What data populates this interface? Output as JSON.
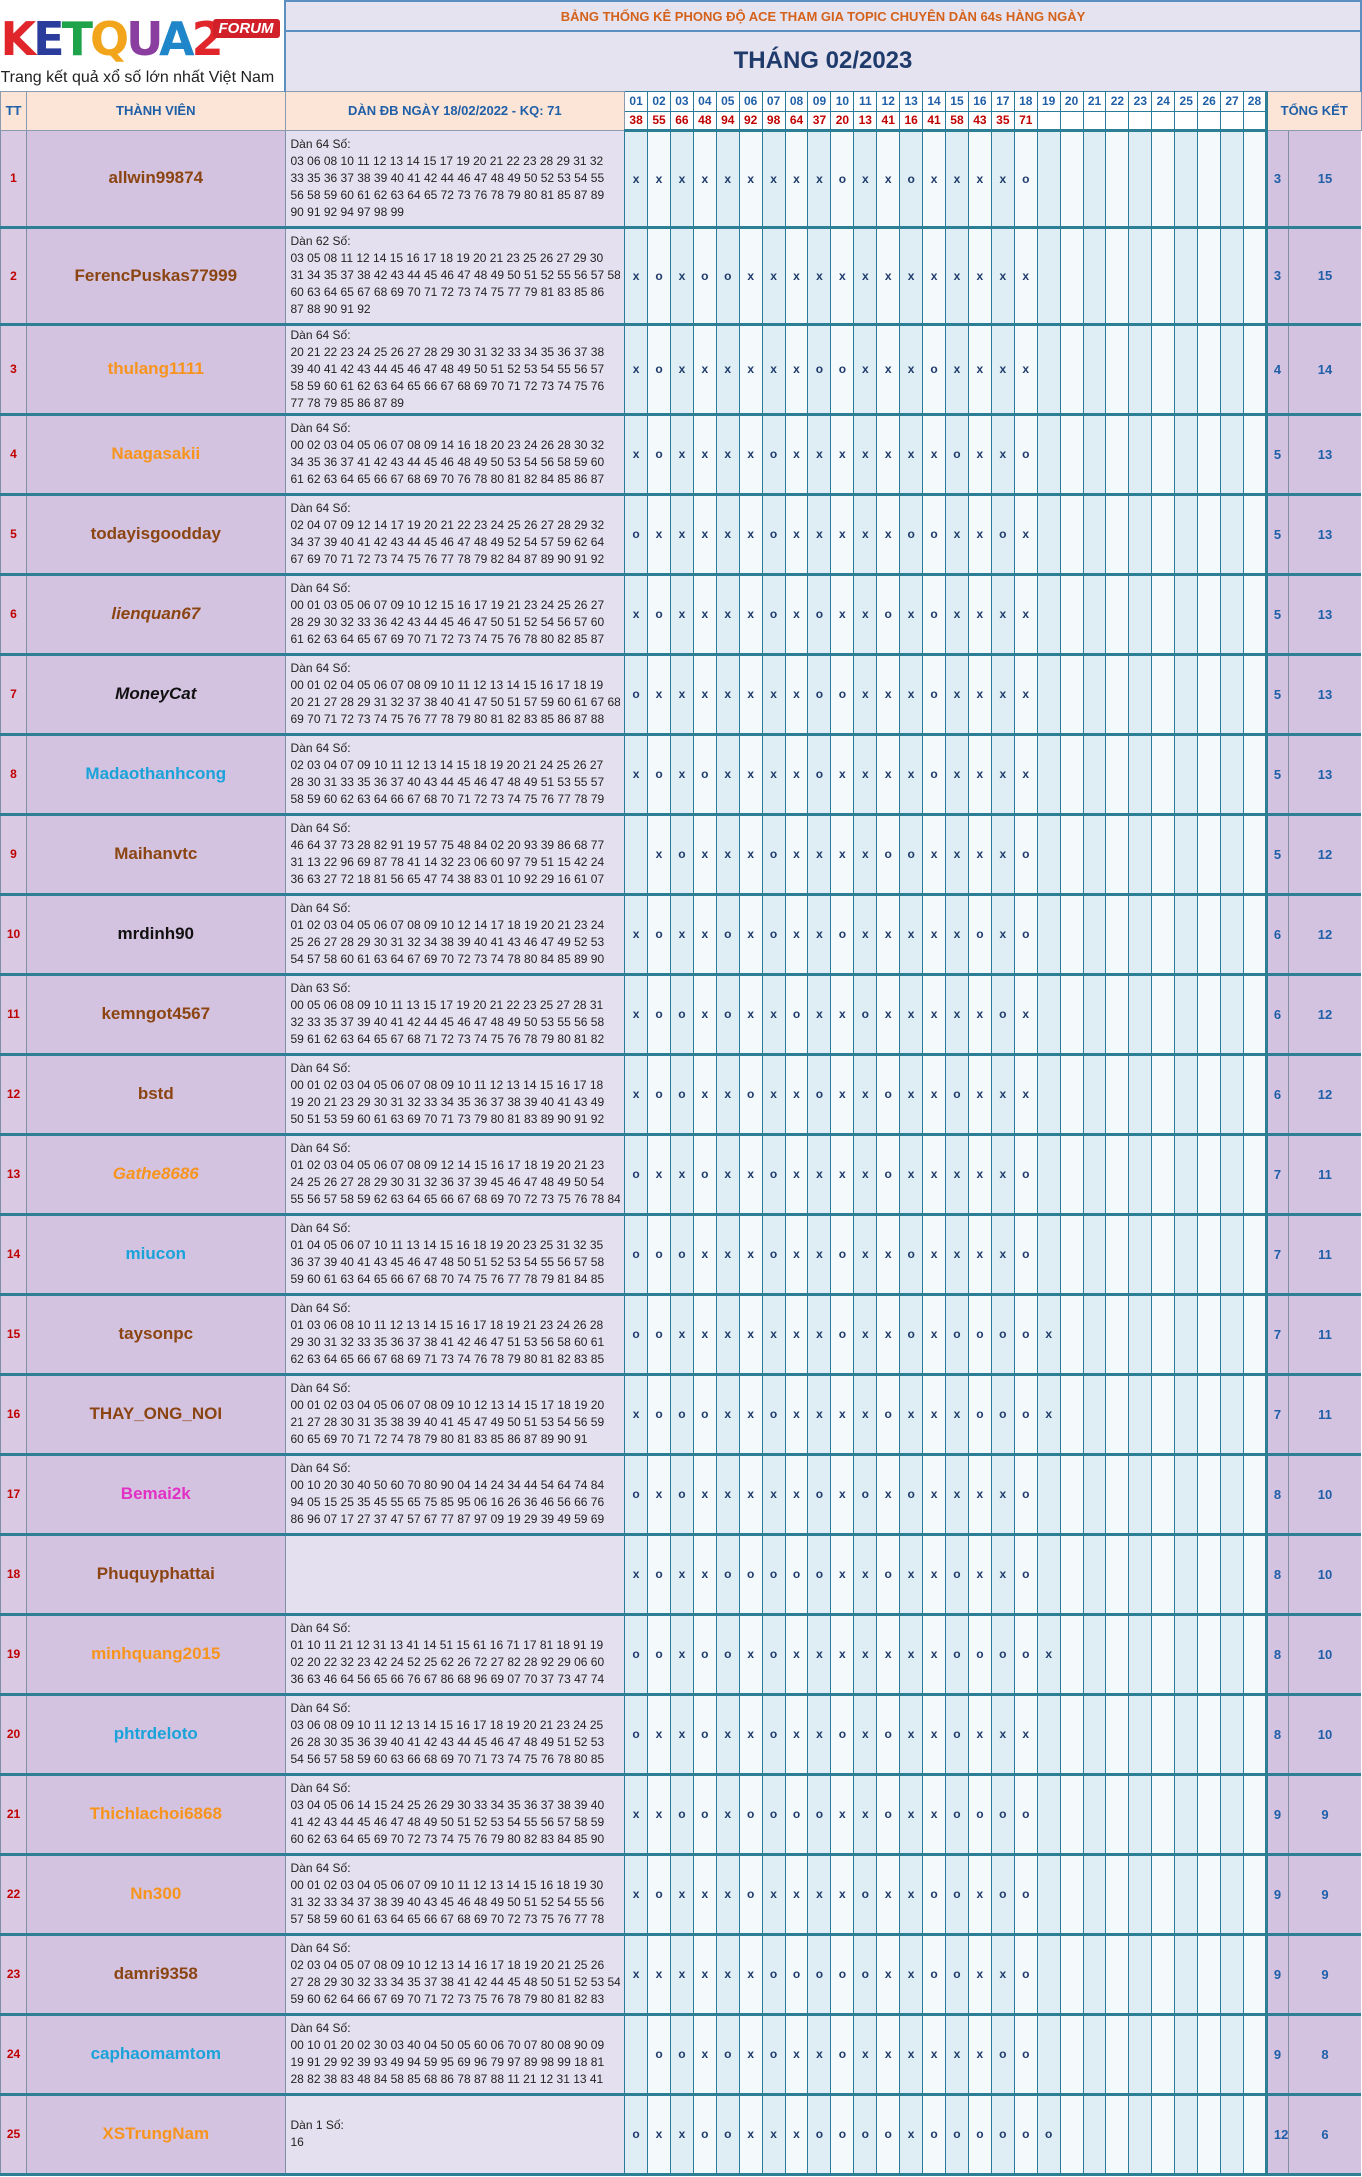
{
  "logo": {
    "brand": "KETQUA2",
    "forum": "FORUM",
    "tagline": "Trang kết quả xổ số lớn nhất Việt Nam"
  },
  "banner": "BẢNG THỐNG KÊ PHONG ĐỘ ACE THAM GIA TOPIC CHUYÊN DÀN 64s HÀNG NGÀY",
  "month_title": "THÁNG 02/2023",
  "headers": {
    "tt": "TT",
    "member": "THÀNH VIÊN",
    "dan": "DÀN ĐB NGÀY 18/02/2022 - KQ: 71",
    "total": "TỔNG KẾT"
  },
  "days": [
    "01",
    "02",
    "03",
    "04",
    "05",
    "06",
    "07",
    "08",
    "09",
    "10",
    "11",
    "12",
    "13",
    "14",
    "15",
    "16",
    "17",
    "18",
    "19",
    "20",
    "21",
    "22",
    "23",
    "24",
    "25",
    "26",
    "27",
    "28"
  ],
  "results": [
    "38",
    "55",
    "66",
    "48",
    "94",
    "92",
    "98",
    "64",
    "37",
    "20",
    "13",
    "41",
    "16",
    "41",
    "58",
    "43",
    "35",
    "71",
    "",
    "",
    "",
    "",
    "",
    "",
    "",
    "",
    "",
    ""
  ],
  "colors": {
    "brown": "#8b4513",
    "orange": "#f7941d",
    "black": "#111111",
    "cyan": "#1aa3d9",
    "magenta": "#e22fc4",
    "blue": "#1f5fa8",
    "red": "#c00000"
  },
  "rows": [
    {
      "tt": "1",
      "name": "allwin99874",
      "color": "brown",
      "italic": false,
      "dan": [
        "Dàn 64 Số:",
        "03 06 08 10 11 12 13 14 15 17 19 20 21 22 23 28 29 31 32",
        "33 35 36 37 38 39 40 41 42 44 46 47 48 49 50 52 53 54 55",
        "56 58 59 60 61 62 63 64 65 72 73 76 78 79 80 81 85 87 89",
        "90 91 92 94 97 98 99"
      ],
      "marks": "xxxxxxxxxoxxoxxxxo",
      "s1": "3",
      "s2": "15"
    },
    {
      "tt": "2",
      "name": "FerencPuskas77999",
      "color": "brown",
      "italic": false,
      "dan": [
        "Dàn 62 Số:",
        "03 05 08 11 12 14 15 16 17 18 19 20 21 23 25 26 27 29 30",
        "31 34 35 37 38 42 43 44 45 46 47 48 49 50 51 52 55 56 57 58",
        "60 63 64 65 67 68 69 70 71 72 73 74 75 77 79 81 83 85 86",
        "87 88 90 91 92"
      ],
      "marks": "xoxooxxxxxxxxxxxxx",
      "s1": "3",
      "s2": "15"
    },
    {
      "tt": "3",
      "name": "thulang1111",
      "color": "orange",
      "italic": false,
      "dan": [
        "Dàn 64 Số:",
        "20 21 22 23 24 25 26 27 28 29 30 31 32 33 34 35 36 37 38",
        "39 40 41 42 43 44 45 46 47 48 49 50 51 52 53 54 55 56 57",
        "58 59 60 61 62 63 64 65 66 67 68 69 70 71 72 73 74 75 76",
        "77 78 79 85 86 87 89"
      ],
      "marks": "xoxxxxxxooxxxoxxxx",
      "s1": "4",
      "s2": "14"
    },
    {
      "tt": "4",
      "name": "Naagasakii",
      "color": "orange",
      "italic": false,
      "dan": [
        "Dàn 64 Số:",
        "00 02 03 04 05 06 07 08 09 14 16 18 20 23 24 26 28 30 32",
        "34 35 36 37 41 42 43 44 45 46 48 49 50 53 54 56 58 59 60",
        "61 62 63 64 65 66 67 68 69 70 76 78 80 81 82 84 85 86 87"
      ],
      "marks": "xoxxxxoxxxxxxxoxxo",
      "s1": "5",
      "s2": "13"
    },
    {
      "tt": "5",
      "name": "todayisgoodday",
      "color": "brown",
      "italic": false,
      "dan": [
        "Dàn 64 Số:",
        "02 04 07 09 12 14 17 19 20 21 22 23 24 25 26 27 28 29 32",
        "34 37 39 40 41 42 43 44 45 46 47 48 49 52 54 57 59 62 64",
        "67 69 70 71 72 73 74 75 76 77 78 79 82 84 87 89 90 91 92"
      ],
      "marks": "oxxxxxoxxxxxooxxox",
      "s1": "5",
      "s2": "13"
    },
    {
      "tt": "6",
      "name": "lienquan67",
      "color": "brown",
      "italic": true,
      "dan": [
        "Dàn 64 Số:",
        "00 01 03 05 06 07 09 10 12 15 16 17 19 21 23 24 25 26 27",
        "28 29 30 32 33 36 42 43 44 45 46 47 50 51 52 54 56 57 60",
        "61 62 63 64 65 67 69 70 71 72 73 74 75 76 78 80 82 85 87"
      ],
      "marks": "xoxxxxoxoxxoxoxxxx",
      "s1": "5",
      "s2": "13"
    },
    {
      "tt": "7",
      "name": "MoneyCat",
      "color": "black",
      "italic": true,
      "dan": [
        "Dàn 64 Số:",
        "00 01 02 04 05 06 07 08 09 10 11 12 13 14 15 16 17 18 19",
        "20 21 27 28 29 31 32 37 38 40 41 47 50 51 57 59 60 61 67 68",
        "69 70 71 72 73 74 75 76 77 78 79 80 81 82 83 85 86 87 88"
      ],
      "marks": "oxxxxxxxooxxxoxxxx",
      "s1": "5",
      "s2": "13"
    },
    {
      "tt": "8",
      "name": "Madaothanhcong",
      "color": "cyan",
      "italic": false,
      "dan": [
        "Dàn 64 Số:",
        "02 03 04 07 09 10 11 12 13 14 15 18 19 20 21 24 25 26 27",
        "28 30 31 33 35 36 37 40 43 44 45 46 47 48 49 51 53 55 57",
        "58 59 60 62 63 64 66 67 68 70 71 72 73 74 75 76 77 78 79"
      ],
      "marks": "xoxoxxxxoxxxxoxxxx",
      "s1": "5",
      "s2": "13"
    },
    {
      "tt": "9",
      "name": "Maihanvtc",
      "color": "brown",
      "italic": false,
      "dan": [
        "Dàn 64 Số:",
        "46 64 37 73 28 82 91 19 57 75 48 84 02 20 93 39 86 68 77",
        "31 13 22 96 69 87 78 41 14 32 23 06 60 97 79 51 15 42 24",
        "36 63 27 72 18 81 56 65 47 74 38 83 01 10 92 29 16 61 07"
      ],
      "marks": " xoxxxoxxxxooxxxxo",
      "s1": "5",
      "s2": "12"
    },
    {
      "tt": "10",
      "name": "mrdinh90",
      "color": "black",
      "italic": false,
      "dan": [
        "Dàn 64 Số:",
        "01 02 03 04 05 06 07 08 09 10 12 14 17 18 19 20 21 23 24",
        "25 26 27 28 29 30 31 32 34 38 39 40 41 43 46 47 49 52 53",
        "54 57 58 60 61 63 64 67 69 70 72 73 74 78 80 84 85 89 90"
      ],
      "marks": "xoxxoxoxxoxxxxxoxo",
      "s1": "6",
      "s2": "12"
    },
    {
      "tt": "11",
      "name": "kemngot4567",
      "color": "brown",
      "italic": false,
      "dan": [
        "Dàn 63 Số:",
        "00 05 06 08 09 10 11 13 15 17 19 20 21 22 23 25 27 28 31",
        "32 33 35 37 39 40 41 42 44 45 46 47 48 49 50 53 55 56 58",
        "59 61 62 63 64 65 67 68 71 72 73 74 75 76 78 79 80 81 82"
      ],
      "marks": "xooxoxxoxxoxxxxxox",
      "s1": "6",
      "s2": "12"
    },
    {
      "tt": "12",
      "name": "bstd",
      "color": "brown",
      "italic": false,
      "dan": [
        "Dàn 64 Số:",
        "00 01 02 03 04 05 06 07 08 09 10 11 12 13 14 15 16 17 18",
        "19 20 21 23 29 30 31 32 33 34 35 36 37 38 39 40 41 43 49",
        "50 51 53 59 60 61 63 69 70 71 73 79 80 81 83 89 90 91 92"
      ],
      "marks": "xooxxoxxoxxoxxoxxx",
      "s1": "6",
      "s2": "12"
    },
    {
      "tt": "13",
      "name": "Gathe8686",
      "color": "orange",
      "italic": true,
      "dan": [
        "Dàn 64 Số:",
        "01 02 03 04 05 06 07 08 09 12 14 15 16 17 18 19 20 21 23",
        "24 25 26 27 28 29 30 31 32 36 37 39 45 46 47 48 49 50 54",
        "55 56 57 58 59 62 63 64 65 66 67 68 69 70 72 73 75 76 78 84"
      ],
      "marks": "oxxoxxoxxxxoxxxxxo",
      "s1": "7",
      "s2": "11"
    },
    {
      "tt": "14",
      "name": "miucon",
      "color": "cyan",
      "italic": false,
      "dan": [
        "Dàn 64 Số:",
        "01 04 05 06 07 10 11 13 14 15 16 18 19 20 23 25 31 32 35",
        "36 37 39 40 41 43 45 46 47 48 50 51 52 53 54 55 56 57 58",
        "59 60 61 63 64 65 66 67 68 70 74 75 76 77 78 79 81 84 85"
      ],
      "marks": "oooxxxoxxoxxoxxxxo",
      "s1": "7",
      "s2": "11"
    },
    {
      "tt": "15",
      "name": "taysonpc",
      "color": "brown",
      "italic": false,
      "dan": [
        "Dàn 64 Số:",
        "01 03 06 08 10 11 12 13 14 15 16 17 18 19 21 23 24 26 28",
        "29 30 31 32 33 35 36 37 38 41 42 46 47 51 53 56 58 60 61",
        "62 63 64 65 66 67 68 69 71 73 74 76 78 79 80 81 82 83 85"
      ],
      "marks": "ooxxxxxxxoxxoxoooox",
      "s1": "7",
      "s2": "11"
    },
    {
      "tt": "16",
      "name": "THAY_ONG_NOI",
      "color": "brown",
      "italic": false,
      "dan": [
        "Dàn 64 Số:",
        "00 01 02 03 04 05 06 07 08 09 10 12 13 14 15 17 18 19 20",
        "21 27 28 30 31 35 38 39 40 41 45 47 49 50 51 53 54 56 59",
        "60 65 69 70 71 72 74 78 79 80 81 83 85 86 87 89 90 91"
      ],
      "marks": "xoooxxoxxxxoxxxooox",
      "s1": "7",
      "s2": "11"
    },
    {
      "tt": "17",
      "name": "Bemai2k",
      "color": "magenta",
      "italic": false,
      "dan": [
        "Dàn 64 Số:",
        "00 10 20 30 40 50 60 70 80 90 04 14 24 34 44 54 64 74 84",
        "94 05 15 25 35 45 55 65 75 85 95 06 16 26 36 46 56 66 76",
        "86 96 07 17 27 37 47 57 67 77 87 97 09 19 29 39 49 59 69"
      ],
      "marks": "oxoxxxxxoxoxoxxxxo",
      "s1": "8",
      "s2": "10"
    },
    {
      "tt": "18",
      "name": "Phuquyphattai",
      "color": "brown",
      "italic": false,
      "dan": [],
      "marks": "xoxxoooooxxoxxoxxo",
      "s1": "8",
      "s2": "10"
    },
    {
      "tt": "19",
      "name": "minhquang2015",
      "color": "orange",
      "italic": false,
      "dan": [
        "Dàn 64 Số:",
        "01 10 11 21 12 31 13 41 14 51 15 61 16 71 17 81 18 91 19",
        "02 20 22 32 23 42 24 52 25 62 26 72 27 82 28 92 29 06 60",
        "36 63 46 64 56 65 66 76 67 86 68 96 69 07 70 37 73 47 74"
      ],
      "marks": "ooxooxoxxxxxxxoooox",
      "s1": "8",
      "s2": "10"
    },
    {
      "tt": "20",
      "name": "phtrdeloto",
      "color": "cyan",
      "italic": false,
      "dan": [
        "Dàn 64 Số:",
        "03 06 08 09 10 11 12 13 14 15 16 17 18 19 20 21 23 24 25",
        "26 28 30 35 36 39 40 41 42 43 44 45 46 47 48 49 51 52 53",
        "54 56 57 58 59 60 63 66 68 69 70 71 73 74 75 76 78 80 85"
      ],
      "marks": "oxxoxxoxxoxoxxoxxx",
      "s1": "8",
      "s2": "10"
    },
    {
      "tt": "21",
      "name": "Thichlachoi6868",
      "color": "orange",
      "italic": false,
      "dan": [
        "Dàn 64 Số:",
        "03 04 05 06 14 15 24 25 26 29 30 33 34 35 36 37 38 39 40",
        "41 42 43 44 45 46 47 48 49 50 51 52 53 54 55 56 57 58 59",
        "60 62 63 64 65 69 70 72 73 74 75 76 79 80 82 83 84 85 90"
      ],
      "marks": "xxooxooooxxoxxoooo",
      "s1": "9",
      "s2": "9"
    },
    {
      "tt": "22",
      "name": "Nn300",
      "color": "orange",
      "italic": false,
      "dan": [
        "Dàn 64 Số:",
        "00 01 02 03 04 05 06 07 09 10 11 12 13 14 15 16 18 19 30",
        "31 32 33 34 37 38 39 40 43 45 46 48 49 50 51 52 54 55 56",
        "57 58 59 60 61 63 64 65 66 67 68 69 70 72 73 75 76 77 78"
      ],
      "marks": "xoxxxoxxxxoxxooxoo",
      "s1": "9",
      "s2": "9"
    },
    {
      "tt": "23",
      "name": "damri9358",
      "color": "brown",
      "italic": false,
      "dan": [
        "Dàn 64 Số:",
        "02 03 04 05 07 08 09 10 12 13 14 16 17 18 19 20 21 25 26",
        "27 28 29 30 32 33 34 35 37 38 41 42 44 45 48 50 51 52 53 54 56 57",
        "59 60 62 64 66 67 69 70 71 72 73 75 76 78 79 80 81 82 83"
      ],
      "marks": "xxxxxxoooooxxooxxo",
      "s1": "9",
      "s2": "9"
    },
    {
      "tt": "24",
      "name": "caphaomamtom",
      "color": "cyan",
      "italic": false,
      "dan": [
        "Dàn 64 Số:",
        "00 10 01 20 02 30 03 40 04 50 05 60 06 70 07 80 08 90 09",
        "19 91 29 92 39 93 49 94 59 95 69 96 79 97 89 98 99 18 81",
        "28 82 38 83 48 84 58 85 68 86 78 87 88 11 21 12 31 13 41"
      ],
      "marks": " ooxoxoxxoxxxxxxoo",
      "s1": "9",
      "s2": "8"
    },
    {
      "tt": "25",
      "name": "XSTrungNam",
      "color": "orange",
      "italic": false,
      "dan": [
        "",
        "Dàn 1 Số:",
        "16",
        ""
      ],
      "marks": "oxxooxxxooooxoooooo",
      "s1": "12",
      "s2": "6"
    }
  ]
}
